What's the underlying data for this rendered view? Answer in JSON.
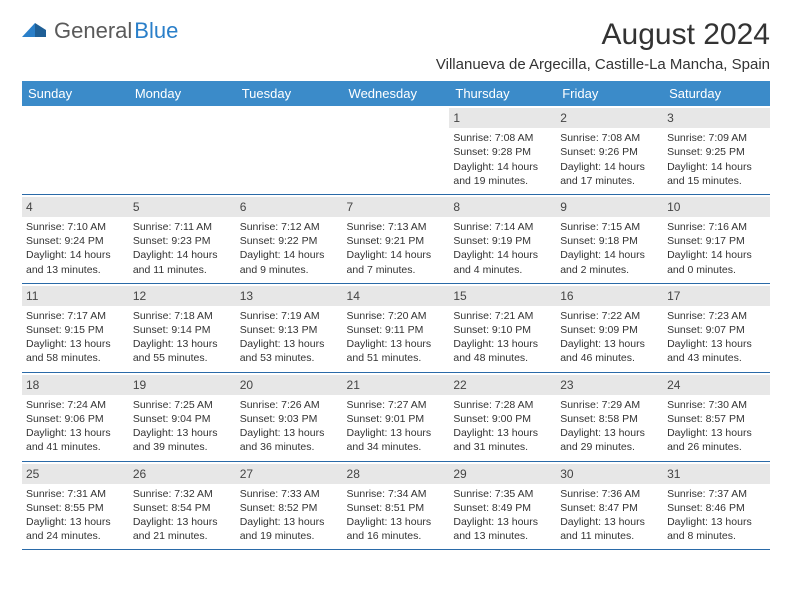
{
  "logo": {
    "text_gray": "General",
    "text_blue": "Blue"
  },
  "title": "August 2024",
  "location": "Villanueva de Argecilla, Castille-La Mancha, Spain",
  "header_bg": "#3b8bc9",
  "dayname_bg": "#e7e7e7",
  "border_color": "#2a6aa8",
  "weekdays": [
    "Sunday",
    "Monday",
    "Tuesday",
    "Wednesday",
    "Thursday",
    "Friday",
    "Saturday"
  ],
  "weeks": [
    [
      null,
      null,
      null,
      null,
      {
        "n": "1",
        "sr": "7:08 AM",
        "ss": "9:28 PM",
        "dl": "14 hours and 19 minutes."
      },
      {
        "n": "2",
        "sr": "7:08 AM",
        "ss": "9:26 PM",
        "dl": "14 hours and 17 minutes."
      },
      {
        "n": "3",
        "sr": "7:09 AM",
        "ss": "9:25 PM",
        "dl": "14 hours and 15 minutes."
      }
    ],
    [
      {
        "n": "4",
        "sr": "7:10 AM",
        "ss": "9:24 PM",
        "dl": "14 hours and 13 minutes."
      },
      {
        "n": "5",
        "sr": "7:11 AM",
        "ss": "9:23 PM",
        "dl": "14 hours and 11 minutes."
      },
      {
        "n": "6",
        "sr": "7:12 AM",
        "ss": "9:22 PM",
        "dl": "14 hours and 9 minutes."
      },
      {
        "n": "7",
        "sr": "7:13 AM",
        "ss": "9:21 PM",
        "dl": "14 hours and 7 minutes."
      },
      {
        "n": "8",
        "sr": "7:14 AM",
        "ss": "9:19 PM",
        "dl": "14 hours and 4 minutes."
      },
      {
        "n": "9",
        "sr": "7:15 AM",
        "ss": "9:18 PM",
        "dl": "14 hours and 2 minutes."
      },
      {
        "n": "10",
        "sr": "7:16 AM",
        "ss": "9:17 PM",
        "dl": "14 hours and 0 minutes."
      }
    ],
    [
      {
        "n": "11",
        "sr": "7:17 AM",
        "ss": "9:15 PM",
        "dl": "13 hours and 58 minutes."
      },
      {
        "n": "12",
        "sr": "7:18 AM",
        "ss": "9:14 PM",
        "dl": "13 hours and 55 minutes."
      },
      {
        "n": "13",
        "sr": "7:19 AM",
        "ss": "9:13 PM",
        "dl": "13 hours and 53 minutes."
      },
      {
        "n": "14",
        "sr": "7:20 AM",
        "ss": "9:11 PM",
        "dl": "13 hours and 51 minutes."
      },
      {
        "n": "15",
        "sr": "7:21 AM",
        "ss": "9:10 PM",
        "dl": "13 hours and 48 minutes."
      },
      {
        "n": "16",
        "sr": "7:22 AM",
        "ss": "9:09 PM",
        "dl": "13 hours and 46 minutes."
      },
      {
        "n": "17",
        "sr": "7:23 AM",
        "ss": "9:07 PM",
        "dl": "13 hours and 43 minutes."
      }
    ],
    [
      {
        "n": "18",
        "sr": "7:24 AM",
        "ss": "9:06 PM",
        "dl": "13 hours and 41 minutes."
      },
      {
        "n": "19",
        "sr": "7:25 AM",
        "ss": "9:04 PM",
        "dl": "13 hours and 39 minutes."
      },
      {
        "n": "20",
        "sr": "7:26 AM",
        "ss": "9:03 PM",
        "dl": "13 hours and 36 minutes."
      },
      {
        "n": "21",
        "sr": "7:27 AM",
        "ss": "9:01 PM",
        "dl": "13 hours and 34 minutes."
      },
      {
        "n": "22",
        "sr": "7:28 AM",
        "ss": "9:00 PM",
        "dl": "13 hours and 31 minutes."
      },
      {
        "n": "23",
        "sr": "7:29 AM",
        "ss": "8:58 PM",
        "dl": "13 hours and 29 minutes."
      },
      {
        "n": "24",
        "sr": "7:30 AM",
        "ss": "8:57 PM",
        "dl": "13 hours and 26 minutes."
      }
    ],
    [
      {
        "n": "25",
        "sr": "7:31 AM",
        "ss": "8:55 PM",
        "dl": "13 hours and 24 minutes."
      },
      {
        "n": "26",
        "sr": "7:32 AM",
        "ss": "8:54 PM",
        "dl": "13 hours and 21 minutes."
      },
      {
        "n": "27",
        "sr": "7:33 AM",
        "ss": "8:52 PM",
        "dl": "13 hours and 19 minutes."
      },
      {
        "n": "28",
        "sr": "7:34 AM",
        "ss": "8:51 PM",
        "dl": "13 hours and 16 minutes."
      },
      {
        "n": "29",
        "sr": "7:35 AM",
        "ss": "8:49 PM",
        "dl": "13 hours and 13 minutes."
      },
      {
        "n": "30",
        "sr": "7:36 AM",
        "ss": "8:47 PM",
        "dl": "13 hours and 11 minutes."
      },
      {
        "n": "31",
        "sr": "7:37 AM",
        "ss": "8:46 PM",
        "dl": "13 hours and 8 minutes."
      }
    ]
  ],
  "labels": {
    "sunrise": "Sunrise:",
    "sunset": "Sunset:",
    "daylight": "Daylight:"
  }
}
